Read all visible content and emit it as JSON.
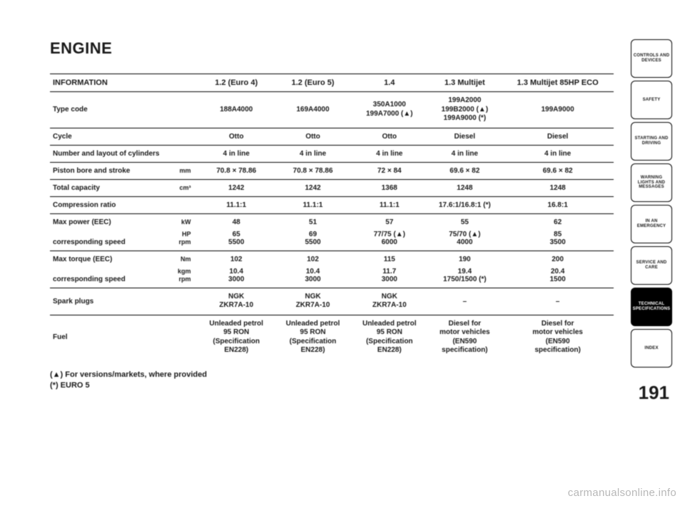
{
  "heading": "ENGINE",
  "columns": {
    "info": "INFORMATION",
    "c1": "1.2 (Euro 4)",
    "c2": "1.2 (Euro 5)",
    "c3": "1.4",
    "c4": "1.3 Multijet",
    "c5": "1.3 Multijet 85HP ECO"
  },
  "rows": {
    "typecode": {
      "label": "Type code",
      "c1": "188A4000",
      "c2": "169A4000",
      "c3": "350A1000\n199A7000 (▲)",
      "c4": "199A2000\n199B2000 (▲)\n199A9000 (*)",
      "c5": "199A9000"
    },
    "cycle": {
      "label": "Cycle",
      "c1": "Otto",
      "c2": "Otto",
      "c3": "Otto",
      "c4": "Diesel",
      "c5": "Diesel"
    },
    "layout": {
      "label": "Number and layout of cylinders",
      "c1": "4 in line",
      "c2": "4 in line",
      "c3": "4 in line",
      "c4": "4 in line",
      "c5": "4 in line"
    },
    "bore": {
      "label": "Piston bore and stroke",
      "unit": "mm",
      "c1": "70.8 × 78.86",
      "c2": "70.8 × 78.86",
      "c3": "72 × 84",
      "c4": "69.6 × 82",
      "c5": "69.6 × 82"
    },
    "capacity": {
      "label": "Total capacity",
      "unit": "cm³",
      "c1": "1242",
      "c2": "1242",
      "c3": "1368",
      "c4": "1248",
      "c5": "1248"
    },
    "compression": {
      "label": "Compression ratio",
      "c1": "11.1:1",
      "c2": "11.1:1",
      "c3": "11.1:1",
      "c4": "17.6:1/16.8:1 (*)",
      "c5": "16.8:1"
    },
    "power": {
      "label": "Max power (EEC)",
      "units": [
        "kW",
        "HP",
        "rpm"
      ],
      "c1": [
        "48",
        "65",
        "5500"
      ],
      "c2": [
        "51",
        "69",
        "5500"
      ],
      "c3": [
        "57",
        "77/75 (▲)",
        "6000"
      ],
      "c4": [
        "55",
        "75/70 (▲)",
        "4000"
      ],
      "c5": [
        "62",
        "85",
        "3500"
      ],
      "sub": "corresponding speed"
    },
    "torque": {
      "label": "Max torque (EEC)",
      "units": [
        "Nm",
        "kgm",
        "rpm"
      ],
      "c1": [
        "102",
        "10.4",
        "3000"
      ],
      "c2": [
        "102",
        "10.4",
        "3000"
      ],
      "c3": [
        "115",
        "11.7",
        "3000"
      ],
      "c4": [
        "190",
        "19.4",
        "1750/1500 (*)"
      ],
      "c5": [
        "200",
        "20.4",
        "1500"
      ],
      "sub": "corresponding speed"
    },
    "spark": {
      "label": "Spark plugs",
      "c1": "NGK\nZKR7A-10",
      "c2": "NGK\nZKR7A-10",
      "c3": "NGK\nZKR7A-10",
      "c4": "–",
      "c5": "–"
    },
    "fuel": {
      "label": "Fuel",
      "c1": "Unleaded petrol\n95 RON\n(Specification\nEN228)",
      "c2": "Unleaded petrol\n95 RON\n(Specification\nEN228)",
      "c3": "Unleaded petrol\n95 RON\n(Specification\nEN228)",
      "c4": "Diesel for\nmotor vehicles\n(EN590\nspecification)",
      "c5": "Diesel for\nmotor vehicles\n(EN590\nspecification)"
    }
  },
  "footnotes": {
    "a": "(▲)  For versions/markets, where provided",
    "b": "(*) EURO 5"
  },
  "tabs": [
    "CONTROLS AND DEVICES",
    "SAFETY",
    "STARTING AND DRIVING",
    "WARNING LIGHTS AND MESSAGES",
    "IN AN EMERGENCY",
    "SERVICE AND CARE",
    "TECHNICAL SPECIFICATIONS",
    "INDEX"
  ],
  "activeTab": 6,
  "pageNumber": "191",
  "watermark": "carmanualsonline.info"
}
